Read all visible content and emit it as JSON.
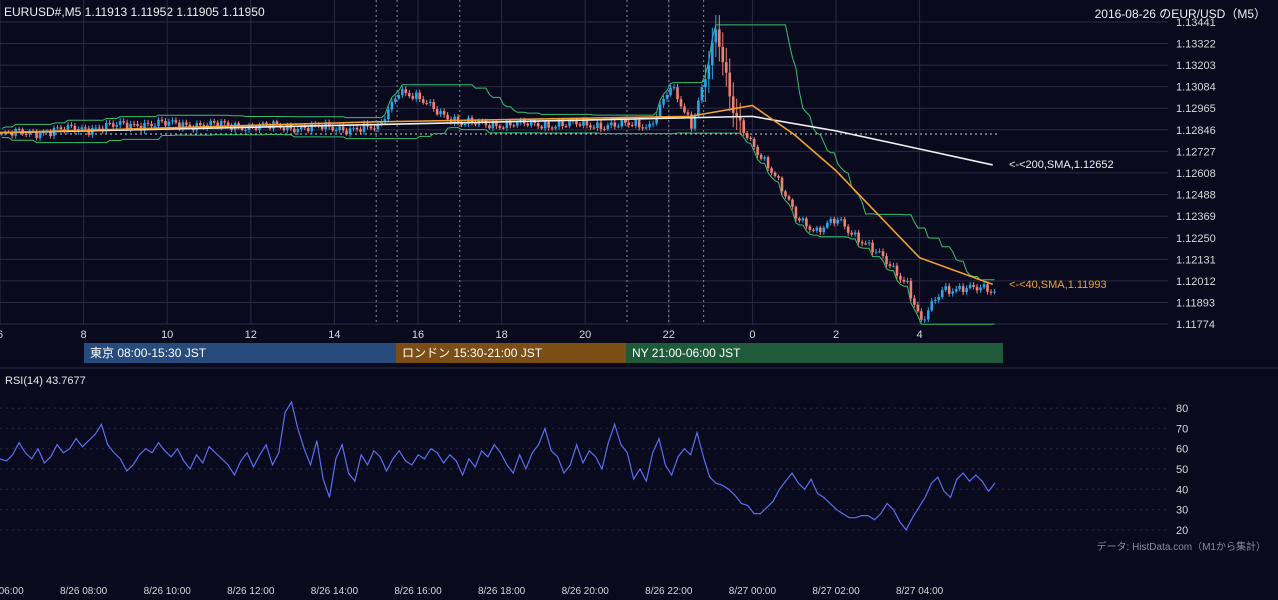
{
  "header": {
    "symbol_line": "EURUSD#,M5 1.11913 1.11952 1.11905 1.11950",
    "title": "2016-08-26 のEUR/USD（M5）"
  },
  "sessions": [
    {
      "label": "東京 08:00-15:30 JST",
      "color": "#264b7c"
    },
    {
      "label": "ロンドン 15:30-21:00 JST",
      "color": "#7a4e14"
    },
    {
      "label": "NY 21:00-06:00 JST",
      "color": "#1f5a3a"
    }
  ],
  "colors": {
    "up": "#29a6e6",
    "down": "#f08070",
    "sma200": "#f0f0f0",
    "sma40": "#f0a030",
    "bands": "#3bbf6b",
    "rsi": "#5a6ef0",
    "grid": "#2a2a44"
  },
  "rsi_label": "RSI(14) 43.7677",
  "credit": "データ: HistData.com（M1から集計）",
  "chart_data": [
    {
      "type": "candlestick",
      "title": "2016-08-26 のEUR/USD（M5）",
      "ylim": [
        1.11774,
        1.13441
      ],
      "yticks": [
        "1.13441",
        "1.13322",
        "1.13203",
        "1.13084",
        "1.12965",
        "1.12846",
        "1.12727",
        "1.12608",
        "1.12488",
        "1.12369",
        "1.12250",
        "1.12131",
        "1.12012",
        "1.11893",
        "1.11774"
      ],
      "xticks_hours": [
        "6",
        "8",
        "10",
        "12",
        "14",
        "16",
        "18",
        "20",
        "22",
        "0",
        "2",
        "4"
      ],
      "reference_line": 1.12823,
      "annotations": {
        "sma200": "<-<200,SMA,1.12652",
        "sma40": "<-<40,SMA,1.11993"
      },
      "key_points": [
        {
          "time": "06:00",
          "price": 1.1282
        },
        {
          "time": "09:30",
          "price": 1.1288
        },
        {
          "time": "15:00",
          "price": 1.1285
        },
        {
          "time": "15:30",
          "price": 1.1307
        },
        {
          "time": "17:00",
          "price": 1.1288
        },
        {
          "time": "21:30",
          "price": 1.1287
        },
        {
          "time": "22:00",
          "price": 1.1308
        },
        {
          "time": "22:30",
          "price": 1.1287
        },
        {
          "time": "22:55",
          "price": 1.1322
        },
        {
          "time": "23:05",
          "price": 1.134
        },
        {
          "time": "23:30",
          "price": 1.1294
        },
        {
          "time": "00:30",
          "price": 1.1258
        },
        {
          "time": "01:00",
          "price": 1.1238
        },
        {
          "time": "01:30",
          "price": 1.1228
        },
        {
          "time": "02:00",
          "price": 1.1235
        },
        {
          "time": "03:00",
          "price": 1.1215
        },
        {
          "time": "03:40",
          "price": 1.12
        },
        {
          "time": "04:00",
          "price": 1.1178
        },
        {
          "time": "04:30",
          "price": 1.1196
        },
        {
          "time": "05:00",
          "price": 1.1198
        },
        {
          "time": "05:45",
          "price": 1.1195
        }
      ],
      "sma200_points": [
        {
          "time": "06:00",
          "price": 1.1283
        },
        {
          "time": "14:00",
          "price": 1.1287
        },
        {
          "time": "22:00",
          "price": 1.1291
        },
        {
          "time": "00:00",
          "price": 1.1292
        },
        {
          "time": "02:00",
          "price": 1.1284
        },
        {
          "time": "04:00",
          "price": 1.1274
        },
        {
          "time": "05:45",
          "price": 1.12652
        }
      ],
      "sma40_points": [
        {
          "time": "06:00",
          "price": 1.1283
        },
        {
          "time": "15:00",
          "price": 1.1289
        },
        {
          "time": "22:30",
          "price": 1.1292
        },
        {
          "time": "00:00",
          "price": 1.1298
        },
        {
          "time": "01:00",
          "price": 1.1282
        },
        {
          "time": "02:00",
          "price": 1.1262
        },
        {
          "time": "03:00",
          "price": 1.1238
        },
        {
          "time": "04:00",
          "price": 1.1214
        },
        {
          "time": "05:45",
          "price": 1.11993
        }
      ]
    },
    {
      "type": "line",
      "title": "RSI(14) 43.7677",
      "ylim": [
        15,
        85
      ],
      "yticks": [
        "80",
        "70",
        "60",
        "50",
        "40",
        "30",
        "20"
      ],
      "xticks": [
        "8/26 06:00",
        "8/26 08:00",
        "8/26 10:00",
        "8/26 12:00",
        "8/26 14:00",
        "8/26 16:00",
        "8/26 18:00",
        "8/26 20:00",
        "8/26 22:00",
        "8/27 00:00",
        "8/27 02:00",
        "8/27 04:00"
      ],
      "series": [
        {
          "values": [
            55,
            54,
            57,
            63,
            58,
            55,
            60,
            53,
            56,
            62,
            58,
            60,
            65,
            61,
            64,
            67,
            72,
            62,
            58,
            55,
            49,
            52,
            57,
            60,
            58,
            63,
            59,
            56,
            60,
            54,
            50,
            57,
            53,
            61,
            58,
            55,
            52,
            47,
            54,
            58,
            51,
            57,
            62,
            52,
            58,
            78,
            83,
            70,
            60,
            52,
            64,
            45,
            36,
            55,
            62,
            48,
            44,
            57,
            52,
            59,
            56,
            49,
            55,
            59,
            54,
            52,
            57,
            55,
            60,
            58,
            53,
            57,
            54,
            47,
            55,
            51,
            59,
            56,
            62,
            58,
            52,
            48,
            57,
            50,
            58,
            62,
            70,
            59,
            56,
            48,
            52,
            62,
            53,
            59,
            56,
            50,
            63,
            72,
            62,
            58,
            45,
            50,
            44,
            58,
            65,
            52,
            47,
            56,
            60,
            57,
            68,
            56,
            46,
            43,
            42,
            40,
            37,
            33,
            32,
            28,
            28,
            31,
            34,
            40,
            44,
            48,
            43,
            40,
            45,
            38,
            36,
            33,
            30,
            28,
            26,
            26,
            27,
            27,
            25,
            28,
            33,
            30,
            24,
            20,
            26,
            31,
            36,
            43,
            46,
            39,
            36,
            45,
            48,
            44,
            47,
            44,
            39,
            43
          ]
        }
      ]
    }
  ]
}
